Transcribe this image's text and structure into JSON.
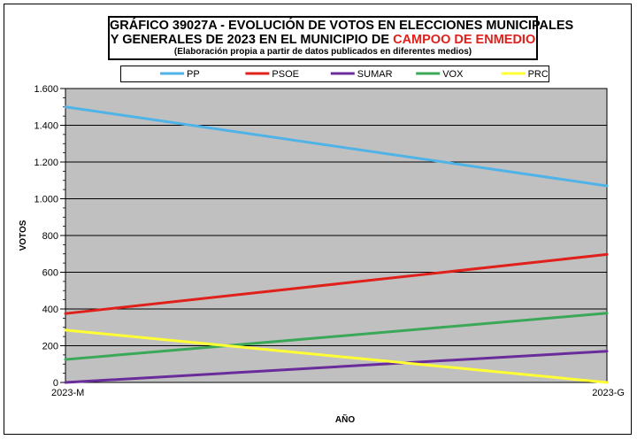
{
  "title": {
    "line1": "GRÁFICO 39027A - EVOLUCIÓN DE VOTOS EN ELECCIONES MUNICIPALES",
    "line2_prefix": "Y GENERALES DE 2023 EN EL MUNICIPIO DE ",
    "line2_highlight": "CAMPOO DE ENMEDIO",
    "subtitle": "(Elaboración propia a partir de datos publicados en diferentes medios)"
  },
  "colors": {
    "highlight": "#e0201b",
    "plot_bg": "#c0c0c0"
  },
  "chart_data": {
    "type": "line",
    "x": [
      "2023-M",
      "2023-G"
    ],
    "xlabel": "AÑO",
    "ylabel": "VOTOS",
    "ylim": [
      0,
      1600
    ],
    "yticks": [
      0,
      200,
      400,
      600,
      800,
      1000,
      1200,
      1400,
      1600
    ],
    "ytick_labels": [
      "0",
      "200",
      "400",
      "600",
      "800",
      "1.000",
      "1.200",
      "1.400",
      "1.600"
    ],
    "grid": true,
    "legend_position": "top",
    "series": [
      {
        "name": "PP",
        "color": "#4fb3e8",
        "values": [
          1500,
          1070
        ]
      },
      {
        "name": "PSOE",
        "color": "#e0201b",
        "values": [
          375,
          697
        ]
      },
      {
        "name": "SUMAR",
        "color": "#6a2c9a",
        "values": [
          0,
          170
        ]
      },
      {
        "name": "VOX",
        "color": "#3aa857",
        "values": [
          125,
          377
        ]
      },
      {
        "name": "PRC",
        "color": "#ffff33",
        "values": [
          285,
          0
        ]
      }
    ]
  }
}
